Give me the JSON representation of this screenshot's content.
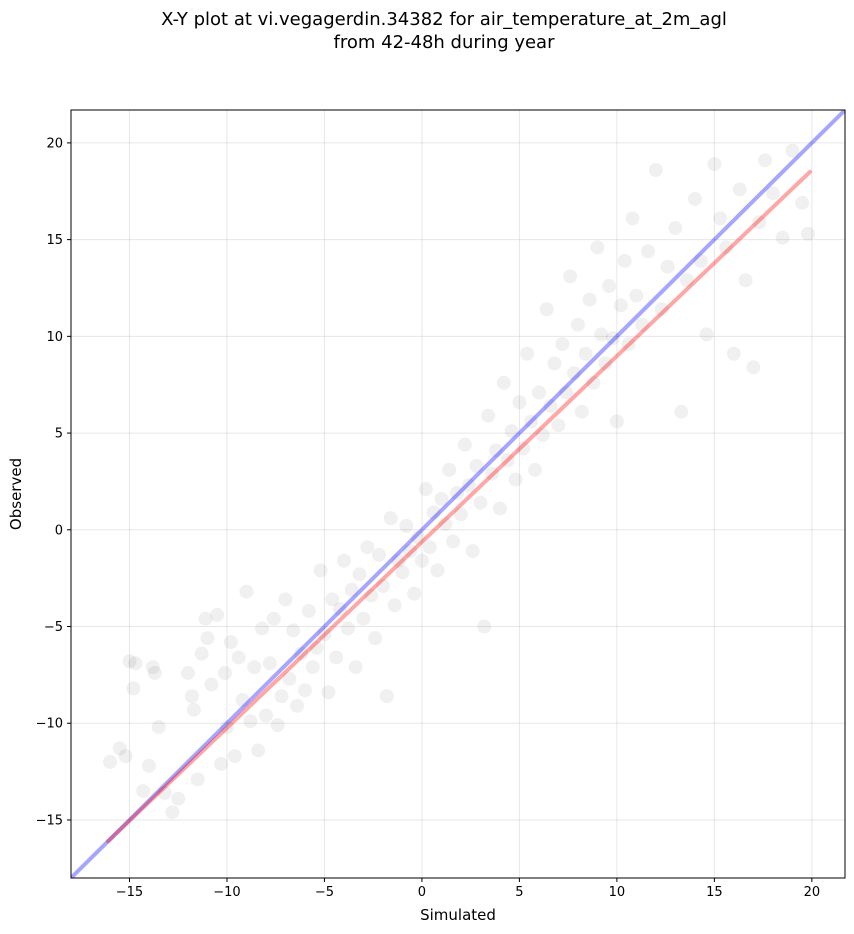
{
  "chart_data": {
    "type": "scatter",
    "title": "X-Y plot at vi.vegagerdin.34382 for air_temperature_at_2m_agl",
    "subtitle": "from 42-48h during year",
    "xlabel": "Simulated",
    "ylabel": "Observed",
    "xlim": [
      -18,
      21.7
    ],
    "ylim": [
      -18,
      21.7
    ],
    "xticks": [
      -15,
      -10,
      -5,
      0,
      5,
      10,
      15,
      20
    ],
    "yticks": [
      -15,
      -10,
      -5,
      0,
      5,
      10,
      15,
      20
    ],
    "xtick_labels": [
      "−15",
      "−10",
      "−5",
      "0",
      "5",
      "10",
      "15",
      "20"
    ],
    "ytick_labels": [
      "−15",
      "−10",
      "−5",
      "0",
      "5",
      "10",
      "15",
      "20"
    ],
    "grid": true,
    "series": [
      {
        "color": "#000000",
        "alpha": 0.06,
        "points": [
          [
            -16,
            -12
          ],
          [
            -15.5,
            -11.3
          ],
          [
            -15.2,
            -11.7
          ],
          [
            -15,
            -6.8
          ],
          [
            -14.8,
            -8.2
          ],
          [
            -14.7,
            -6.9
          ],
          [
            -14.3,
            -13.5
          ],
          [
            -14,
            -12.2
          ],
          [
            -13.8,
            -7.1
          ],
          [
            -13.7,
            -7.4
          ],
          [
            -13.5,
            -10.2
          ],
          [
            -13.2,
            -13.6
          ],
          [
            -12.8,
            -14.6
          ],
          [
            -12.5,
            -13.9
          ],
          [
            -12,
            -7.4
          ],
          [
            -11.8,
            -8.6
          ],
          [
            -11.7,
            -9.3
          ],
          [
            -11.5,
            -12.9
          ],
          [
            -11.3,
            -6.4
          ],
          [
            -11.1,
            -4.6
          ],
          [
            -11,
            -5.6
          ],
          [
            -10.8,
            -8
          ],
          [
            -10.5,
            -4.4
          ],
          [
            -10.3,
            -12.1
          ],
          [
            -10.1,
            -7.4
          ],
          [
            -10,
            -10.2
          ],
          [
            -9.8,
            -5.8
          ],
          [
            -9.6,
            -11.7
          ],
          [
            -9.4,
            -6.6
          ],
          [
            -9.2,
            -8.8
          ],
          [
            -9,
            -3.2
          ],
          [
            -8.8,
            -9.9
          ],
          [
            -8.6,
            -7.1
          ],
          [
            -8.4,
            -11.4
          ],
          [
            -8.2,
            -5.1
          ],
          [
            -8,
            -9.6
          ],
          [
            -7.8,
            -6.9
          ],
          [
            -7.6,
            -4.6
          ],
          [
            -7.4,
            -10.1
          ],
          [
            -7.2,
            -8.6
          ],
          [
            -7,
            -3.6
          ],
          [
            -6.8,
            -7.7
          ],
          [
            -6.6,
            -5.2
          ],
          [
            -6.4,
            -9.1
          ],
          [
            -6.2,
            -6.4
          ],
          [
            -6,
            -8.3
          ],
          [
            -5.8,
            -4.2
          ],
          [
            -5.6,
            -7.1
          ],
          [
            -5.4,
            -6.1
          ],
          [
            -5.2,
            -2.1
          ],
          [
            -5,
            -5.4
          ],
          [
            -4.8,
            -8.4
          ],
          [
            -4.6,
            -3.6
          ],
          [
            -4.4,
            -6.6
          ],
          [
            -4.2,
            -4.1
          ],
          [
            -4,
            -1.6
          ],
          [
            -3.8,
            -5.1
          ],
          [
            -3.6,
            -3.1
          ],
          [
            -3.4,
            -7.1
          ],
          [
            -3.2,
            -2.3
          ],
          [
            -3,
            -4.6
          ],
          [
            -2.8,
            -0.9
          ],
          [
            -2.6,
            -3.4
          ],
          [
            -2.4,
            -5.6
          ],
          [
            -2.2,
            -1.3
          ],
          [
            -2,
            -2.9
          ],
          [
            -1.8,
            -8.6
          ],
          [
            -1.6,
            0.6
          ],
          [
            -1.4,
            -3.9
          ],
          [
            -1.2,
            -1.6
          ],
          [
            -1,
            -2.2
          ],
          [
            -0.8,
            0.2
          ],
          [
            -0.6,
            -1.1
          ],
          [
            -0.4,
            -3.3
          ],
          [
            -0.2,
            -0.4
          ],
          [
            0,
            -1.6
          ],
          [
            0.2,
            2.1
          ],
          [
            0.4,
            -0.9
          ],
          [
            0.6,
            0.9
          ],
          [
            0.8,
            -2.1
          ],
          [
            1,
            1.6
          ],
          [
            1.2,
            0.3
          ],
          [
            1.4,
            3.1
          ],
          [
            1.6,
            -0.6
          ],
          [
            1.8,
            1.9
          ],
          [
            2,
            0.8
          ],
          [
            2.2,
            4.4
          ],
          [
            2.4,
            2.3
          ],
          [
            2.6,
            -1.1
          ],
          [
            2.8,
            3.3
          ],
          [
            3,
            1.4
          ],
          [
            3.2,
            -5
          ],
          [
            3.4,
            5.9
          ],
          [
            3.6,
            2.9
          ],
          [
            3.8,
            4.1
          ],
          [
            4,
            1.1
          ],
          [
            4.2,
            7.6
          ],
          [
            4.4,
            3.6
          ],
          [
            4.6,
            5.1
          ],
          [
            4.8,
            2.6
          ],
          [
            5,
            6.6
          ],
          [
            5.2,
            4.2
          ],
          [
            5.4,
            9.1
          ],
          [
            5.6,
            5.6
          ],
          [
            5.8,
            3.1
          ],
          [
            6,
            7.1
          ],
          [
            6.2,
            4.9
          ],
          [
            6.4,
            11.4
          ],
          [
            6.6,
            6.4
          ],
          [
            6.8,
            8.6
          ],
          [
            7,
            5.4
          ],
          [
            7.2,
            9.6
          ],
          [
            7.4,
            7.1
          ],
          [
            7.6,
            13.1
          ],
          [
            7.8,
            8.1
          ],
          [
            8,
            10.6
          ],
          [
            8.2,
            6.1
          ],
          [
            8.4,
            9.1
          ],
          [
            8.6,
            11.9
          ],
          [
            8.8,
            7.6
          ],
          [
            9,
            14.6
          ],
          [
            9.2,
            10.1
          ],
          [
            9.4,
            8.6
          ],
          [
            9.6,
            12.6
          ],
          [
            9.8,
            9.9
          ],
          [
            10,
            5.6
          ],
          [
            10.2,
            11.6
          ],
          [
            10.4,
            13.9
          ],
          [
            10.6,
            9.6
          ],
          [
            10.8,
            16.1
          ],
          [
            11,
            12.1
          ],
          [
            11.3,
            10.6
          ],
          [
            11.6,
            14.4
          ],
          [
            12,
            18.6
          ],
          [
            12.3,
            11.4
          ],
          [
            12.6,
            13.6
          ],
          [
            13,
            15.6
          ],
          [
            13.3,
            6.1
          ],
          [
            13.6,
            12.9
          ],
          [
            14,
            17.1
          ],
          [
            14.3,
            13.9
          ],
          [
            14.6,
            10.1
          ],
          [
            15,
            18.9
          ],
          [
            15.3,
            16.1
          ],
          [
            15.6,
            14.6
          ],
          [
            16,
            9.1
          ],
          [
            16.3,
            17.6
          ],
          [
            16.6,
            12.9
          ],
          [
            17,
            8.4
          ],
          [
            17.3,
            15.9
          ],
          [
            17.6,
            19.1
          ],
          [
            18,
            17.4
          ],
          [
            18.5,
            15.1
          ],
          [
            19,
            19.6
          ],
          [
            19.5,
            16.9
          ],
          [
            19.8,
            15.3
          ]
        ]
      }
    ],
    "lines": [
      {
        "color": "#0000ff",
        "alpha": 0.35,
        "x": [
          -18,
          21.7
        ],
        "y": [
          -18,
          21.7
        ]
      },
      {
        "color": "#ff0000",
        "alpha": 0.35,
        "x": [
          -16.1,
          19.9
        ],
        "y": [
          -16.1,
          18.5
        ]
      }
    ]
  }
}
